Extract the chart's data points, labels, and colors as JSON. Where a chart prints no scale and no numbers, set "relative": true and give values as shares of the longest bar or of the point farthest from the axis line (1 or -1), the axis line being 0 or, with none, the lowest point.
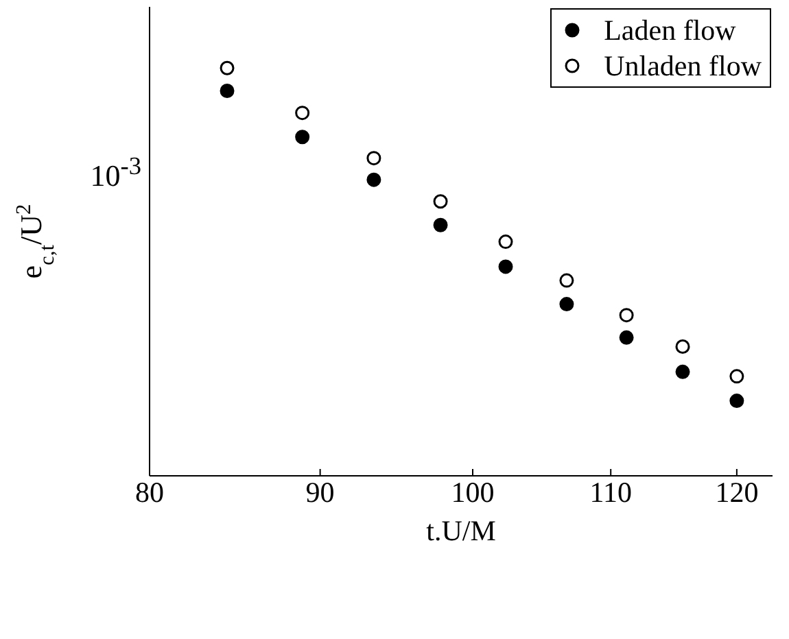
{
  "chart_data": {
    "type": "scatter",
    "xlabel": "t.U/M",
    "ylabel": "e$_{c,t}$/U$^{2}$",
    "log": "x",
    "xlim": [
      80,
      123
    ],
    "xticks": [
      80,
      90,
      100,
      110,
      120
    ],
    "relative": true,
    "annotations": [
      "10$^{-3}$"
    ],
    "marker": "circle",
    "legend": "top right",
    "grid": false,
    "series": [
      {
        "name": "Laden flow",
        "color": "#000000",
        "x": [
          84.4,
          88.9,
          93.4,
          97.8,
          102.3,
          106.7,
          111.2,
          115.6,
          120.0
        ],
        "values": [
          0.944,
          0.831,
          0.726,
          0.615,
          0.513,
          0.421,
          0.339,
          0.255,
          0.184
        ]
      },
      {
        "name": "Unladen flow",
        "color": "#ffffff",
        "x": [
          84.4,
          88.9,
          93.4,
          97.8,
          102.3,
          106.7,
          111.2,
          115.6,
          120.0
        ],
        "values": [
          1,
          0.89,
          0.779,
          0.673,
          0.574,
          0.479,
          0.394,
          0.317,
          0.244
        ]
      }
    ]
  }
}
